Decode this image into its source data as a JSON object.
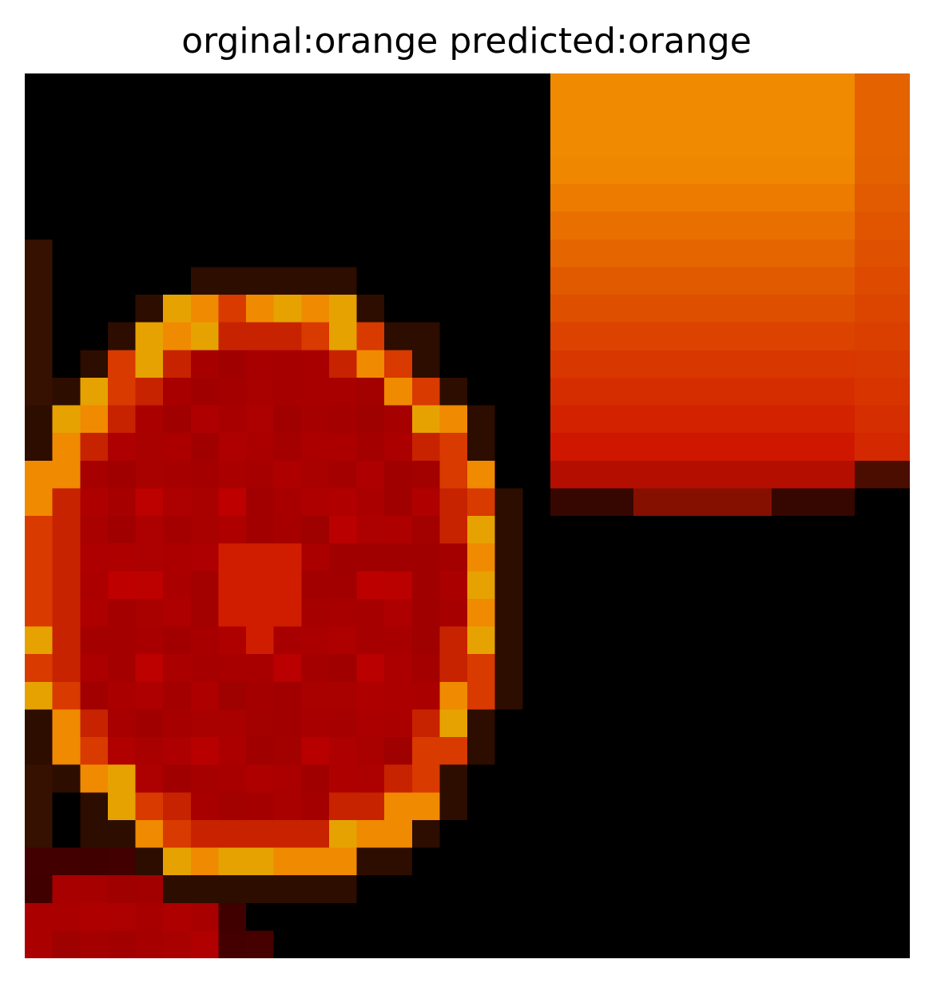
{
  "title": "orginal:orange predicted:orange",
  "image": {
    "semantic": "pixelated-orange-photo",
    "grid": 32,
    "colors": {
      "background": "#000000",
      "dark_red": "#8e0000",
      "red": "#b00000",
      "bright_red": "#c80000",
      "deep_orange": "#d83a00",
      "orange": "#ec6a00",
      "light_orange": "#f08a00",
      "amber": "#e6a200",
      "yellow": "#f0c000",
      "brown": "#5a1a00"
    }
  }
}
